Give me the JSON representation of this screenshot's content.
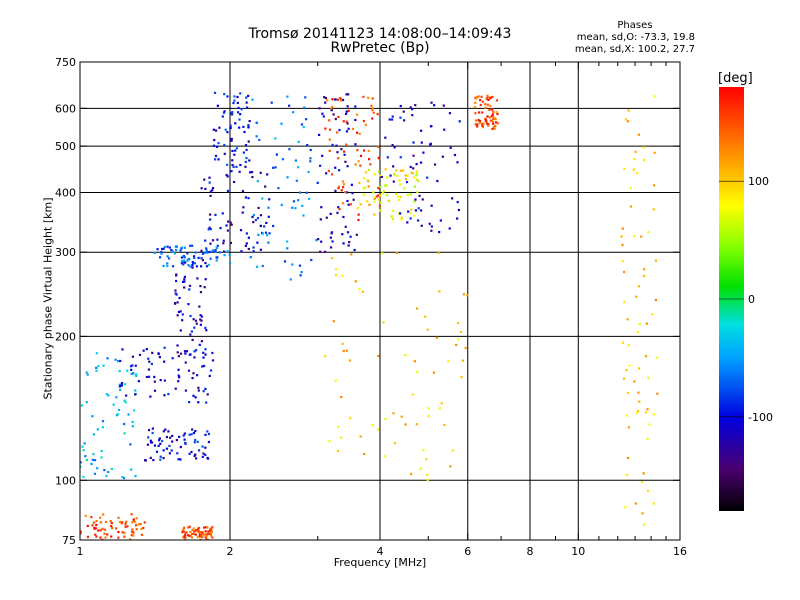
{
  "title": {
    "line1": "Tromsø 20141123 14:08:00–14:09:43",
    "line2": "RwPretec (Bp)"
  },
  "phase_stats": {
    "header": "Phases",
    "line_o": "mean, sd,O: -73.3, 19.8",
    "line_x": "mean, sd,X: 100.2, 27.7"
  },
  "colorbar": {
    "unit": "[deg]",
    "ticks": [
      "100",
      "0",
      "-100"
    ],
    "tick_values": [
      100,
      0,
      -100
    ],
    "range": [
      -180,
      180
    ]
  },
  "chart_data": {
    "type": "scatter",
    "title": "Tromsø 20141123 14:08:00–14:09:43",
    "subtitle": "RwPretec (Bp)",
    "xlabel": "Frequency [MHz]",
    "ylabel": "Stationary phase Virtual Height [km]",
    "xscale": "log",
    "yscale": "log",
    "xlim": [
      1,
      16
    ],
    "ylim": [
      75,
      750
    ],
    "xticks": [
      1,
      2,
      4,
      6,
      8,
      10,
      16
    ],
    "xtick_labels": [
      "1",
      "2",
      "4",
      "6",
      "8",
      "10",
      "16"
    ],
    "xminor_ticks": [
      3,
      5,
      7,
      9,
      11,
      12,
      13,
      14,
      15
    ],
    "yticks": [
      75,
      100,
      200,
      300,
      400,
      500,
      600,
      750
    ],
    "ytick_labels": [
      "75",
      "100",
      "200",
      "300",
      "400",
      "500",
      "600",
      "750"
    ],
    "grid_x": [
      2,
      4,
      6,
      8,
      10
    ],
    "grid_y": [
      100,
      200,
      300,
      400,
      500,
      600
    ],
    "color_encoding": "phase in degrees",
    "clusters": [
      {
        "x": [
          1.0,
          1.35
        ],
        "y": [
          75,
          85
        ],
        "phase_approx": 150
      },
      {
        "x": [
          1.0,
          1.3
        ],
        "y": [
          100,
          190
        ],
        "phase_approx": -40
      },
      {
        "x": [
          1.2,
          1.85
        ],
        "y": [
          145,
          190
        ],
        "phase_approx": -110
      },
      {
        "x": [
          1.35,
          1.85
        ],
        "y": [
          110,
          130
        ],
        "phase_approx": -100
      },
      {
        "x": [
          1.6,
          1.85
        ],
        "y": [
          75,
          80
        ],
        "phase_approx": 150
      },
      {
        "x": [
          1.55,
          1.8
        ],
        "y": [
          180,
          300
        ],
        "phase_approx": -110
      },
      {
        "x": [
          1.4,
          2.0
        ],
        "y": [
          280,
          310
        ],
        "phase_approx": -70
      },
      {
        "x": [
          1.75,
          2.4
        ],
        "y": [
          300,
          450
        ],
        "phase_approx": -110
      },
      {
        "x": [
          1.85,
          2.2
        ],
        "y": [
          450,
          650
        ],
        "phase_approx": -95
      },
      {
        "x": [
          2.2,
          3.0
        ],
        "y": [
          260,
          640
        ],
        "phase_approx": -60
      },
      {
        "x": [
          3.0,
          3.6
        ],
        "y": [
          300,
          650
        ],
        "phase_approx": -120
      },
      {
        "x": [
          3.1,
          4.0
        ],
        "y": [
          350,
          640
        ],
        "phase_approx": 150
      },
      {
        "x": [
          3.6,
          4.8
        ],
        "y": [
          350,
          450
        ],
        "phase_approx": 80
      },
      {
        "x": [
          4.0,
          5.8
        ],
        "y": [
          330,
          620
        ],
        "phase_approx": -110
      },
      {
        "x": [
          6.2,
          6.9
        ],
        "y": [
          540,
          640
        ],
        "phase_approx": 150
      },
      {
        "x": [
          12.2,
          14.5
        ],
        "y": [
          80,
          640
        ],
        "phase_approx": 100
      },
      {
        "x": [
          3.0,
          6.0
        ],
        "y": [
          100,
          300
        ],
        "phase_approx": 100
      }
    ]
  }
}
